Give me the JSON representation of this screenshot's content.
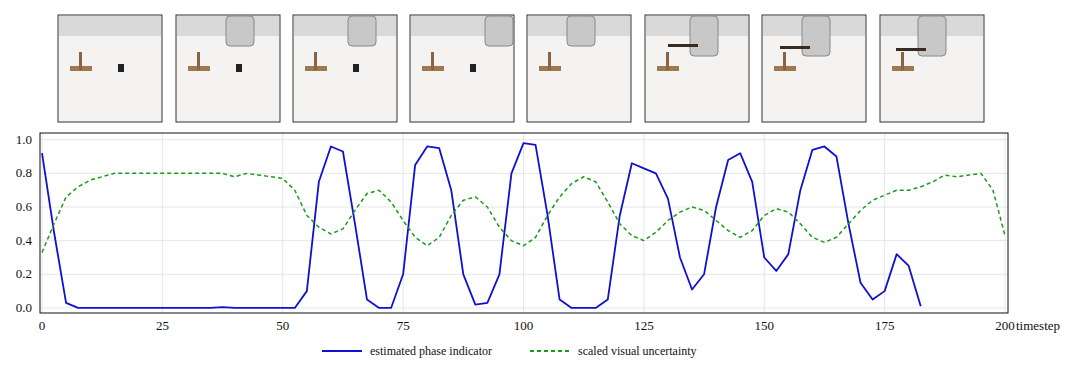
{
  "chart_data": {
    "type": "line",
    "x": [
      0,
      2.5,
      5,
      7.5,
      10,
      12.5,
      15,
      17.5,
      20,
      22.5,
      25,
      27.5,
      30,
      32.5,
      35,
      37.5,
      40,
      42.5,
      45,
      47.5,
      50,
      52.5,
      55,
      57.5,
      60,
      62.5,
      65,
      67.5,
      70,
      72.5,
      75,
      77.5,
      80,
      82.5,
      85,
      87.5,
      90,
      92.5,
      95,
      97.5,
      100,
      102.5,
      105,
      107.5,
      110,
      112.5,
      115,
      117.5,
      120,
      122.5,
      125,
      127.5,
      130,
      132.5,
      135,
      137.5,
      140,
      142.5,
      145,
      147.5,
      150,
      152.5,
      155,
      157.5,
      160,
      162.5,
      165,
      167.5,
      170,
      172.5,
      175,
      177.5,
      180,
      182.5,
      185,
      187.5,
      190,
      192.5,
      195,
      197.5,
      200
    ],
    "series": [
      {
        "name": "estimated phase indicator",
        "color": "#1010d0",
        "line_style": "solid",
        "values": [
          0.92,
          0.45,
          0.03,
          0,
          0,
          0,
          0,
          0,
          0,
          0,
          0,
          0,
          0,
          0,
          0,
          0.005,
          0,
          0,
          0,
          0,
          0,
          0,
          0.1,
          0.75,
          0.96,
          0.93,
          0.5,
          0.05,
          0,
          0,
          0.2,
          0.85,
          0.96,
          0.95,
          0.7,
          0.2,
          0.02,
          0.03,
          0.2,
          0.8,
          0.98,
          0.97,
          0.55,
          0.05,
          0,
          0,
          0,
          0.05,
          0.55,
          0.86,
          0.83,
          0.8,
          0.65,
          0.3,
          0.11,
          0.2,
          0.6,
          0.88,
          0.92,
          0.75,
          0.3,
          0.22,
          0.32,
          0.7,
          0.94,
          0.96,
          0.9,
          0.5,
          0.15,
          0.05,
          0.1,
          0.32,
          0.25,
          0.01,
          null,
          null,
          null,
          null,
          null,
          null,
          null
        ]
      },
      {
        "name": "scaled visual uncertainty",
        "color": "#1a9a1a",
        "line_style": "dashed",
        "values": [
          0.33,
          0.5,
          0.66,
          0.72,
          0.76,
          0.78,
          0.8,
          0.8,
          0.8,
          0.8,
          0.8,
          0.8,
          0.8,
          0.8,
          0.8,
          0.8,
          0.78,
          0.8,
          0.79,
          0.78,
          0.77,
          0.7,
          0.55,
          0.48,
          0.44,
          0.47,
          0.58,
          0.68,
          0.7,
          0.63,
          0.52,
          0.42,
          0.37,
          0.42,
          0.55,
          0.64,
          0.66,
          0.6,
          0.48,
          0.4,
          0.37,
          0.42,
          0.55,
          0.66,
          0.74,
          0.78,
          0.75,
          0.63,
          0.5,
          0.43,
          0.4,
          0.45,
          0.52,
          0.57,
          0.6,
          0.58,
          0.52,
          0.46,
          0.42,
          0.46,
          0.55,
          0.59,
          0.57,
          0.5,
          0.42,
          0.39,
          0.42,
          0.5,
          0.58,
          0.64,
          0.67,
          0.7,
          0.7,
          0.72,
          0.75,
          0.79,
          0.78,
          0.79,
          0.8,
          0.7,
          0.43
        ]
      }
    ],
    "x_label": "timestep",
    "xlim": [
      0,
      200
    ],
    "xticks": [
      0,
      25,
      50,
      75,
      100,
      125,
      150,
      175,
      200
    ],
    "ylim": [
      -0.03,
      1.04
    ],
    "yticks": [
      {
        "value": 0,
        "label": "0.0"
      },
      0.2,
      0.4,
      0.6,
      0.8,
      {
        "value": 1,
        "label": "1.0"
      }
    ],
    "grid": true,
    "legend": "bottom"
  }
}
